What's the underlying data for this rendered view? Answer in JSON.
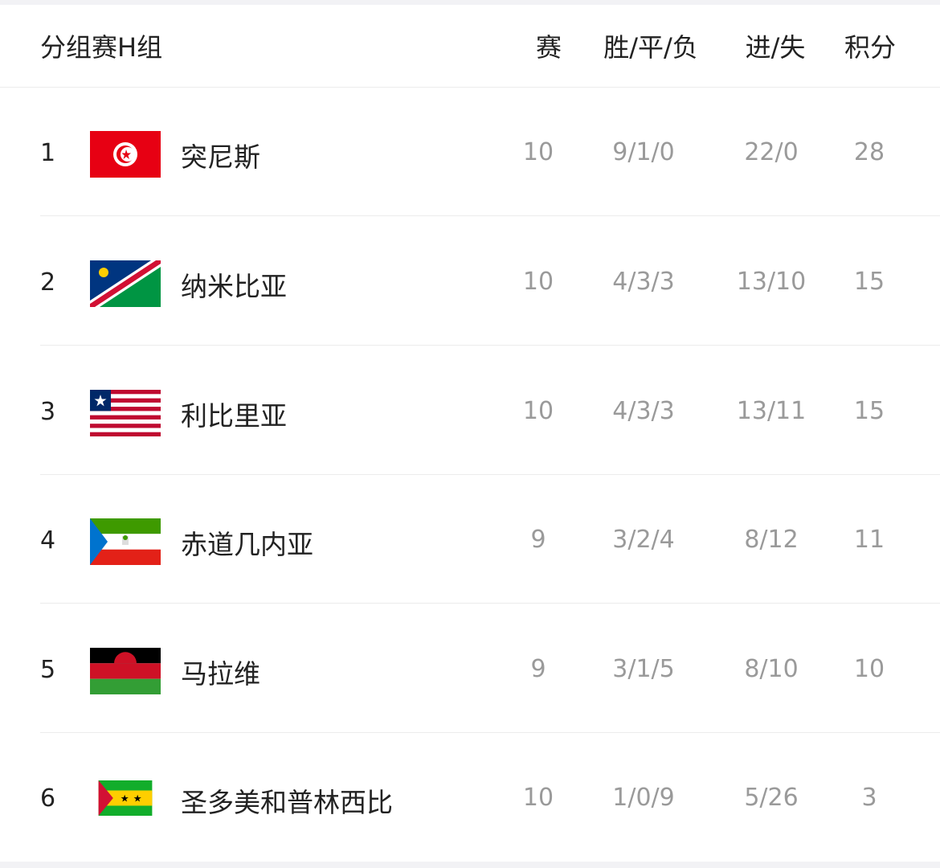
{
  "header": {
    "title": "分组赛H组",
    "columns": {
      "played": "赛",
      "wdl": "胜/平/负",
      "goals": "进/失",
      "points": "积分"
    }
  },
  "rows": [
    {
      "rank": "1",
      "team": "突尼斯",
      "flag": "tunisia-flag",
      "played": "10",
      "wdl": "9/1/0",
      "goals": "22/0",
      "points": "28"
    },
    {
      "rank": "2",
      "team": "纳米比亚",
      "flag": "namibia-flag",
      "played": "10",
      "wdl": "4/3/3",
      "goals": "13/10",
      "points": "15"
    },
    {
      "rank": "3",
      "team": "利比里亚",
      "flag": "liberia-flag",
      "played": "10",
      "wdl": "4/3/3",
      "goals": "13/11",
      "points": "15"
    },
    {
      "rank": "4",
      "team": "赤道几内亚",
      "flag": "equatorial-guinea-flag",
      "played": "9",
      "wdl": "3/2/4",
      "goals": "8/12",
      "points": "11"
    },
    {
      "rank": "5",
      "team": "马拉维",
      "flag": "malawi-flag",
      "played": "9",
      "wdl": "3/1/5",
      "goals": "8/10",
      "points": "10"
    },
    {
      "rank": "6",
      "team": "圣多美和普林西比",
      "flag": "sao-tome-and-principe-flag",
      "played": "10",
      "wdl": "1/0/9",
      "goals": "5/26",
      "points": "3"
    }
  ]
}
